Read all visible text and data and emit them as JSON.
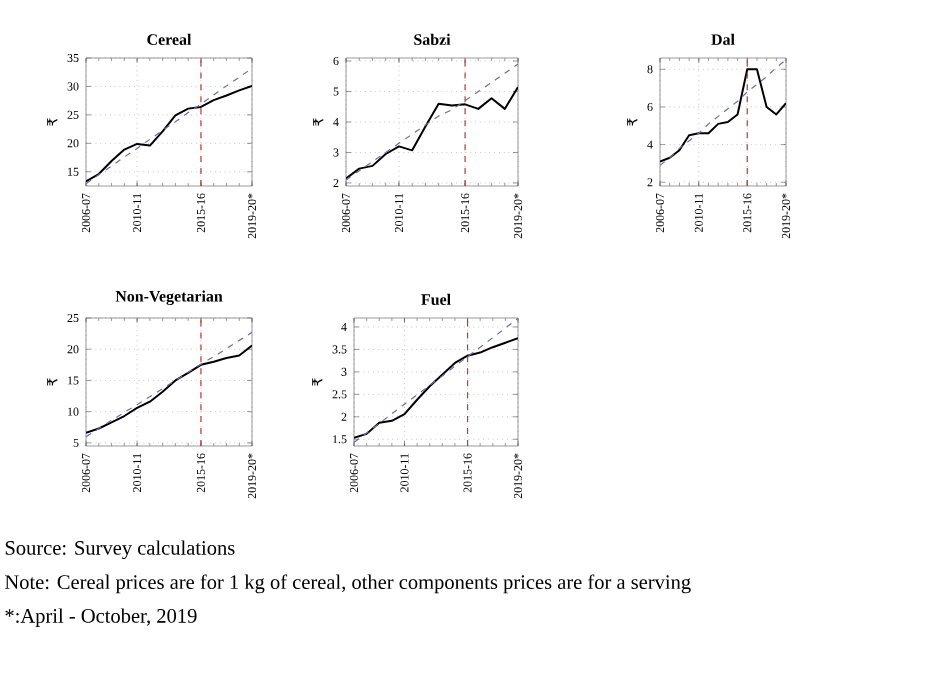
{
  "chart_data": [
    {
      "type": "line",
      "title": "Cereal",
      "ylabel": "₹",
      "grid": true,
      "categories": [
        "2006-07",
        null,
        null,
        null,
        "2010-11",
        null,
        null,
        null,
        null,
        "2015-16",
        null,
        null,
        null,
        "2019-20*"
      ],
      "ylim": [
        12.5,
        35
      ],
      "yticks": [
        15,
        20,
        25,
        30,
        35
      ],
      "series": [
        {
          "color": "#000000",
          "values": [
            13.3,
            14.6,
            16.9,
            18.9,
            19.9,
            19.6,
            22.1,
            24.9,
            26.1,
            26.4,
            27.6,
            28.4,
            29.3,
            30.1
          ]
        },
        {
          "values": [
            12.9,
            14.5,
            16.0,
            17.6,
            19.1,
            20.7,
            22.3,
            23.8,
            25.4,
            26.9,
            28.5,
            30.1,
            31.6,
            33.2
          ],
          "color": "#6b6bb0",
          "line_style": "dashed"
        }
      ],
      "ref_lines": [
        {
          "axis": "x",
          "value": "2015-16",
          "color": "#c0392b",
          "line_style": "dashed"
        }
      ]
    },
    {
      "type": "line",
      "title": "Sabzi",
      "ylabel": "₹",
      "grid": true,
      "categories": [
        "2006-07",
        null,
        null,
        null,
        "2010-11",
        null,
        null,
        null,
        null,
        "2015-16",
        null,
        null,
        null,
        "2019-20*"
      ],
      "ylim": [
        1.9,
        6.1
      ],
      "yticks": [
        2,
        3,
        4,
        5,
        6
      ],
      "series": [
        {
          "color": "#000000",
          "values": [
            2.15,
            2.47,
            2.56,
            2.95,
            3.2,
            3.07,
            3.85,
            4.6,
            4.54,
            4.58,
            4.43,
            4.78,
            4.43,
            5.15
          ]
        },
        {
          "values": [
            2.1,
            2.4,
            2.7,
            3.0,
            3.3,
            3.6,
            3.9,
            4.2,
            4.4,
            4.7,
            5.0,
            5.3,
            5.6,
            5.9
          ],
          "color": "#6b6bb0",
          "line_style": "dashed"
        }
      ],
      "ref_lines": [
        {
          "axis": "x",
          "value": "2015-16",
          "color": "#c0392b",
          "line_style": "dashed"
        }
      ]
    },
    {
      "type": "line",
      "title": "Dal",
      "ylabel": "₹",
      "grid": true,
      "categories": [
        "2006-07",
        null,
        null,
        null,
        "2010-11",
        null,
        null,
        null,
        null,
        "2015-16",
        null,
        null,
        null,
        "2019-20*"
      ],
      "ylim": [
        1.8,
        8.6
      ],
      "yticks": [
        2,
        4,
        6,
        8
      ],
      "series": [
        {
          "color": "#000000",
          "values": [
            3.1,
            3.3,
            3.7,
            4.5,
            4.6,
            4.6,
            5.1,
            5.2,
            5.6,
            8.0,
            8.0,
            6.0,
            5.6,
            6.2
          ]
        },
        {
          "values": [
            2.9,
            3.3,
            3.8,
            4.2,
            4.6,
            5.1,
            5.5,
            5.9,
            6.3,
            6.8,
            7.2,
            7.6,
            8.1,
            8.5
          ],
          "color": "#6b6bb0",
          "line_style": "dashed"
        }
      ],
      "ref_lines": [
        {
          "axis": "x",
          "value": "2015-16",
          "color": "#c0392b",
          "line_style": "dashed"
        }
      ]
    },
    {
      "type": "line",
      "title": "Non-Vegetarian",
      "ylabel": "₹",
      "grid": true,
      "categories": [
        "2006-07",
        null,
        null,
        null,
        "2010-11",
        null,
        null,
        null,
        null,
        "2015-16",
        null,
        null,
        null,
        "2019-20*"
      ],
      "ylim": [
        4.5,
        25
      ],
      "yticks": [
        5,
        10,
        15,
        20,
        25
      ],
      "series": [
        {
          "color": "#000000",
          "values": [
            6.6,
            7.3,
            8.3,
            9.3,
            10.6,
            11.6,
            13.2,
            15,
            16.2,
            17.5,
            18,
            18.6,
            19,
            20.6
          ]
        },
        {
          "values": [
            6.0,
            7.3,
            8.6,
            9.9,
            11.1,
            12.4,
            13.7,
            15.0,
            16.3,
            17.6,
            18.8,
            20.1,
            21.4,
            22.7
          ],
          "color": "#6b6bb0",
          "line_style": "dashed"
        }
      ],
      "ref_lines": [
        {
          "axis": "x",
          "value": "2015-16",
          "color": "#c0392b",
          "line_style": "dashed"
        }
      ]
    },
    {
      "type": "line",
      "title": "Fuel",
      "ylabel": "₹",
      "grid": true,
      "categories": [
        "2006-07",
        null,
        null,
        null,
        "2010-11",
        null,
        null,
        null,
        null,
        "2015-16",
        null,
        null,
        null,
        "2019-20*"
      ],
      "ylim": [
        1.35,
        4.2
      ],
      "yticks": [
        1.5,
        2,
        2.5,
        3,
        3.5,
        4
      ],
      "series": [
        {
          "color": "#000000",
          "values": [
            1.53,
            1.62,
            1.87,
            1.91,
            2.06,
            2.38,
            2.68,
            2.94,
            3.2,
            3.36,
            3.43,
            3.55,
            3.65,
            3.75
          ]
        },
        {
          "values": [
            1.43,
            1.64,
            1.85,
            2.07,
            2.28,
            2.49,
            2.7,
            2.91,
            3.13,
            3.34,
            3.55,
            3.76,
            3.98,
            4.19
          ],
          "color": "#6b6bb0",
          "line_style": "dashed"
        }
      ],
      "ref_lines": [
        {
          "axis": "x",
          "value": "2015-16",
          "color": "#c0392b",
          "line_style": "dashed"
        }
      ],
      "annotations": [
        "Source: Survey calculations",
        "Note: Cereal prices are for 1 kg of cereal, other components prices are for a serving",
        "*:April - October, 2019"
      ]
    }
  ]
}
